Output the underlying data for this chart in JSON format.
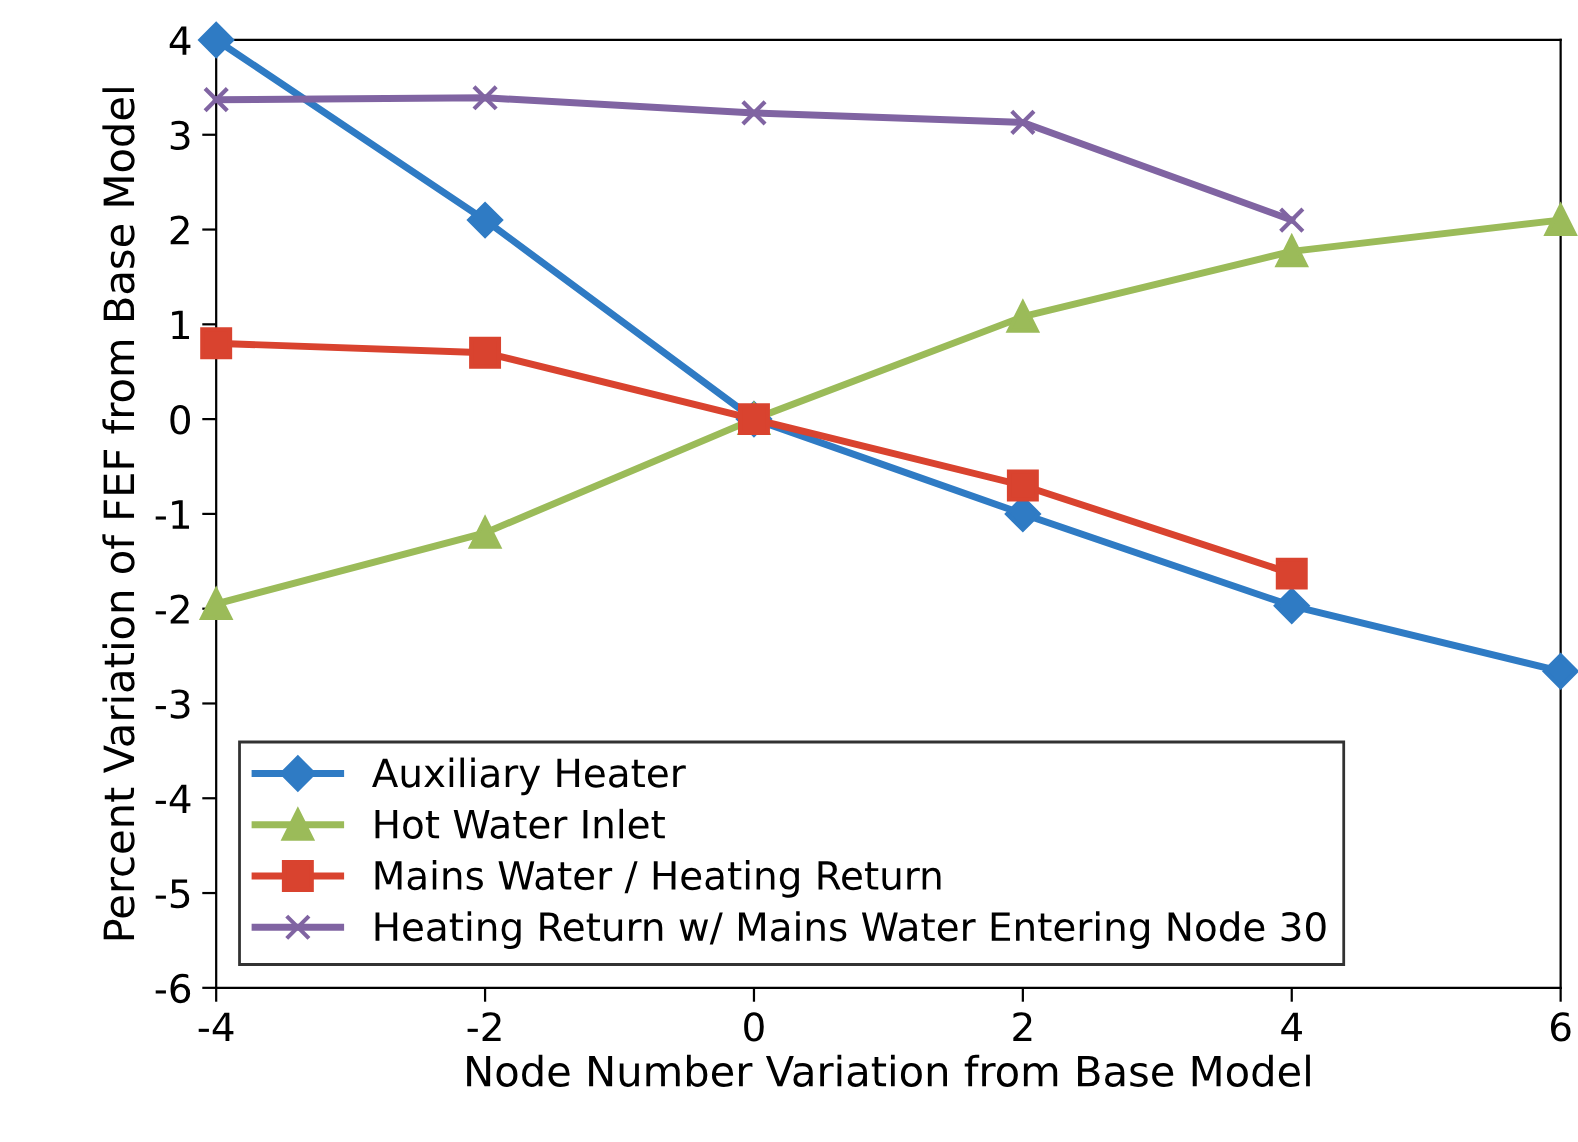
{
  "chart_data": {
    "type": "line",
    "xlabel": "Node Number Variation from Base Model",
    "ylabel": "Percent Variation of FEF from Base Model",
    "x": [
      -4,
      -2,
      0,
      2,
      4,
      6
    ],
    "series": [
      {
        "name": "Auxiliary Heater",
        "color": "#2f7bc4",
        "marker": "diamond",
        "values": [
          4.0,
          2.1,
          0.0,
          -1.0,
          -1.97,
          -2.66
        ]
      },
      {
        "name": "Hot Water Inlet",
        "color": "#9bbb59",
        "marker": "triangle",
        "values": [
          -1.95,
          -1.2,
          0.0,
          1.08,
          1.77,
          2.1
        ]
      },
      {
        "name": "Mains Water / Heating Return",
        "color": "#d9432f",
        "marker": "square",
        "values": [
          0.8,
          0.7,
          0.0,
          -0.7,
          -1.63,
          null
        ]
      },
      {
        "name": "Heating Return w/ Mains Water Entering Node 30",
        "color": "#8064a2",
        "marker": "cross",
        "values": [
          3.37,
          3.39,
          3.23,
          3.13,
          2.1,
          null
        ]
      }
    ],
    "xlim": [
      -4,
      6
    ],
    "xticks": [
      -4,
      -2,
      0,
      2,
      4,
      6
    ],
    "ylim": [
      -6,
      4
    ],
    "yticks": [
      -6,
      -5,
      -4,
      -3,
      -2,
      -1,
      0,
      1,
      2,
      3,
      4
    ],
    "grid": false,
    "legend": "bottom left",
    "line_style": "solid"
  }
}
